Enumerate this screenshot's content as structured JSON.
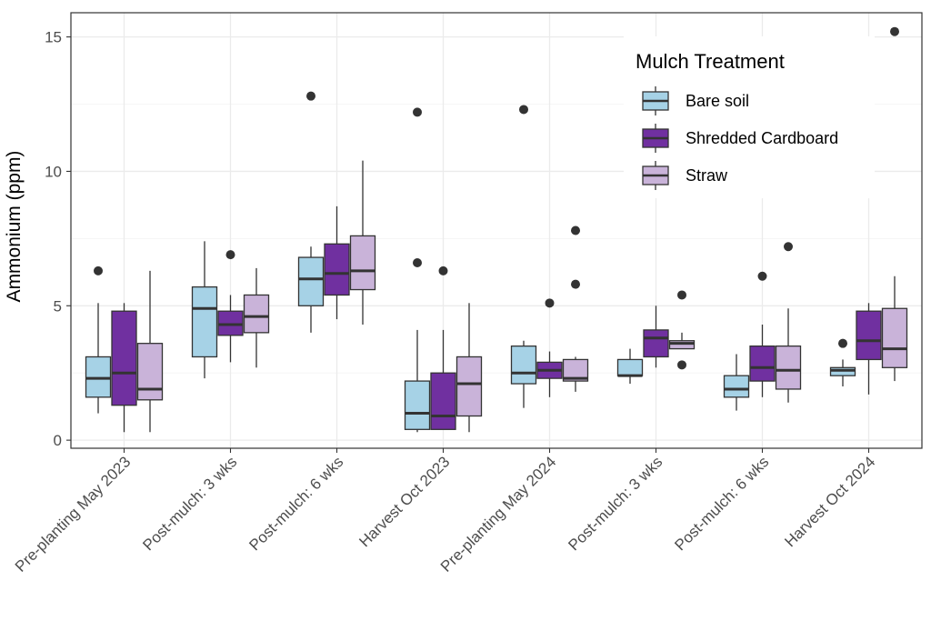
{
  "chart_data": {
    "type": "boxplot",
    "title": "",
    "xlabel": "",
    "ylabel": "Ammonium (ppm)",
    "ylim": [
      -0.3,
      15.9
    ],
    "yticks": [
      0,
      5,
      10,
      15
    ],
    "categories": [
      "Pre-planting May 2023",
      "Post-mulch: 3 wks",
      "Post-mulch: 6 wks",
      "Harvest Oct 2023",
      "Pre-planting May 2024",
      "Post-mulch: 3 wks",
      "Post-mulch: 6 wks",
      "Harvest Oct 2024"
    ],
    "legend": {
      "title": "Mulch Treatment",
      "position": "top-right"
    },
    "series": [
      {
        "name": "Bare soil",
        "color": "#a6d2e6",
        "boxes": [
          {
            "low": 1.0,
            "q1": 1.6,
            "median": 2.3,
            "q3": 3.1,
            "high": 5.1,
            "outliers": [
              6.3
            ]
          },
          {
            "low": 2.3,
            "q1": 3.1,
            "median": 4.9,
            "q3": 5.7,
            "high": 7.4,
            "outliers": []
          },
          {
            "low": 4.0,
            "q1": 5.0,
            "median": 6.0,
            "q3": 6.8,
            "high": 7.2,
            "outliers": [
              12.8
            ]
          },
          {
            "low": 0.3,
            "q1": 0.4,
            "median": 1.0,
            "q3": 2.2,
            "high": 4.1,
            "outliers": [
              12.2,
              6.6
            ]
          },
          {
            "low": 1.2,
            "q1": 2.1,
            "median": 2.5,
            "q3": 3.5,
            "high": 3.7,
            "outliers": [
              12.3
            ]
          },
          {
            "low": 2.1,
            "q1": 2.4,
            "median": 2.4,
            "q3": 3.0,
            "high": 3.4,
            "outliers": []
          },
          {
            "low": 1.1,
            "q1": 1.6,
            "median": 1.9,
            "q3": 2.4,
            "high": 3.2,
            "outliers": []
          },
          {
            "low": 2.0,
            "q1": 2.4,
            "median": 2.6,
            "q3": 2.7,
            "high": 3.0,
            "outliers": [
              3.6
            ]
          }
        ]
      },
      {
        "name": "Shredded Cardboard",
        "color": "#7030a0",
        "boxes": [
          {
            "low": 0.3,
            "q1": 1.3,
            "median": 2.5,
            "q3": 4.8,
            "high": 5.1,
            "outliers": []
          },
          {
            "low": 2.9,
            "q1": 3.9,
            "median": 4.3,
            "q3": 4.8,
            "high": 5.4,
            "outliers": [
              6.9
            ]
          },
          {
            "low": 4.5,
            "q1": 5.4,
            "median": 6.2,
            "q3": 7.3,
            "high": 8.7,
            "outliers": []
          },
          {
            "low": 0.4,
            "q1": 0.4,
            "median": 0.9,
            "q3": 2.5,
            "high": 4.1,
            "outliers": [
              6.3
            ]
          },
          {
            "low": 1.6,
            "q1": 2.3,
            "median": 2.6,
            "q3": 2.9,
            "high": 3.3,
            "outliers": [
              5.1
            ]
          },
          {
            "low": 2.7,
            "q1": 3.1,
            "median": 3.8,
            "q3": 4.1,
            "high": 5.0,
            "outliers": []
          },
          {
            "low": 1.6,
            "q1": 2.2,
            "median": 2.7,
            "q3": 3.5,
            "high": 4.3,
            "outliers": [
              6.1
            ]
          },
          {
            "low": 1.7,
            "q1": 3.0,
            "median": 3.7,
            "q3": 4.8,
            "high": 5.1,
            "outliers": []
          }
        ]
      },
      {
        "name": "Straw",
        "color": "#c9b3d9",
        "boxes": [
          {
            "low": 0.3,
            "q1": 1.5,
            "median": 1.9,
            "q3": 3.6,
            "high": 6.3,
            "outliers": []
          },
          {
            "low": 2.7,
            "q1": 4.0,
            "median": 4.6,
            "q3": 5.4,
            "high": 6.4,
            "outliers": []
          },
          {
            "low": 4.3,
            "q1": 5.6,
            "median": 6.3,
            "q3": 7.6,
            "high": 10.4,
            "outliers": []
          },
          {
            "low": 0.3,
            "q1": 0.9,
            "median": 2.1,
            "q3": 3.1,
            "high": 5.1,
            "outliers": []
          },
          {
            "low": 1.8,
            "q1": 2.2,
            "median": 2.3,
            "q3": 3.0,
            "high": 3.1,
            "outliers": [
              7.8,
              5.8
            ]
          },
          {
            "low": 3.4,
            "q1": 3.4,
            "median": 3.6,
            "q3": 3.7,
            "high": 4.0,
            "outliers": [
              5.4,
              2.8
            ]
          },
          {
            "low": 1.4,
            "q1": 1.9,
            "median": 2.6,
            "q3": 3.5,
            "high": 4.9,
            "outliers": [
              7.2
            ]
          },
          {
            "low": 2.2,
            "q1": 2.7,
            "median": 3.4,
            "q3": 4.9,
            "high": 6.1,
            "outliers": [
              15.2
            ]
          }
        ]
      }
    ]
  }
}
